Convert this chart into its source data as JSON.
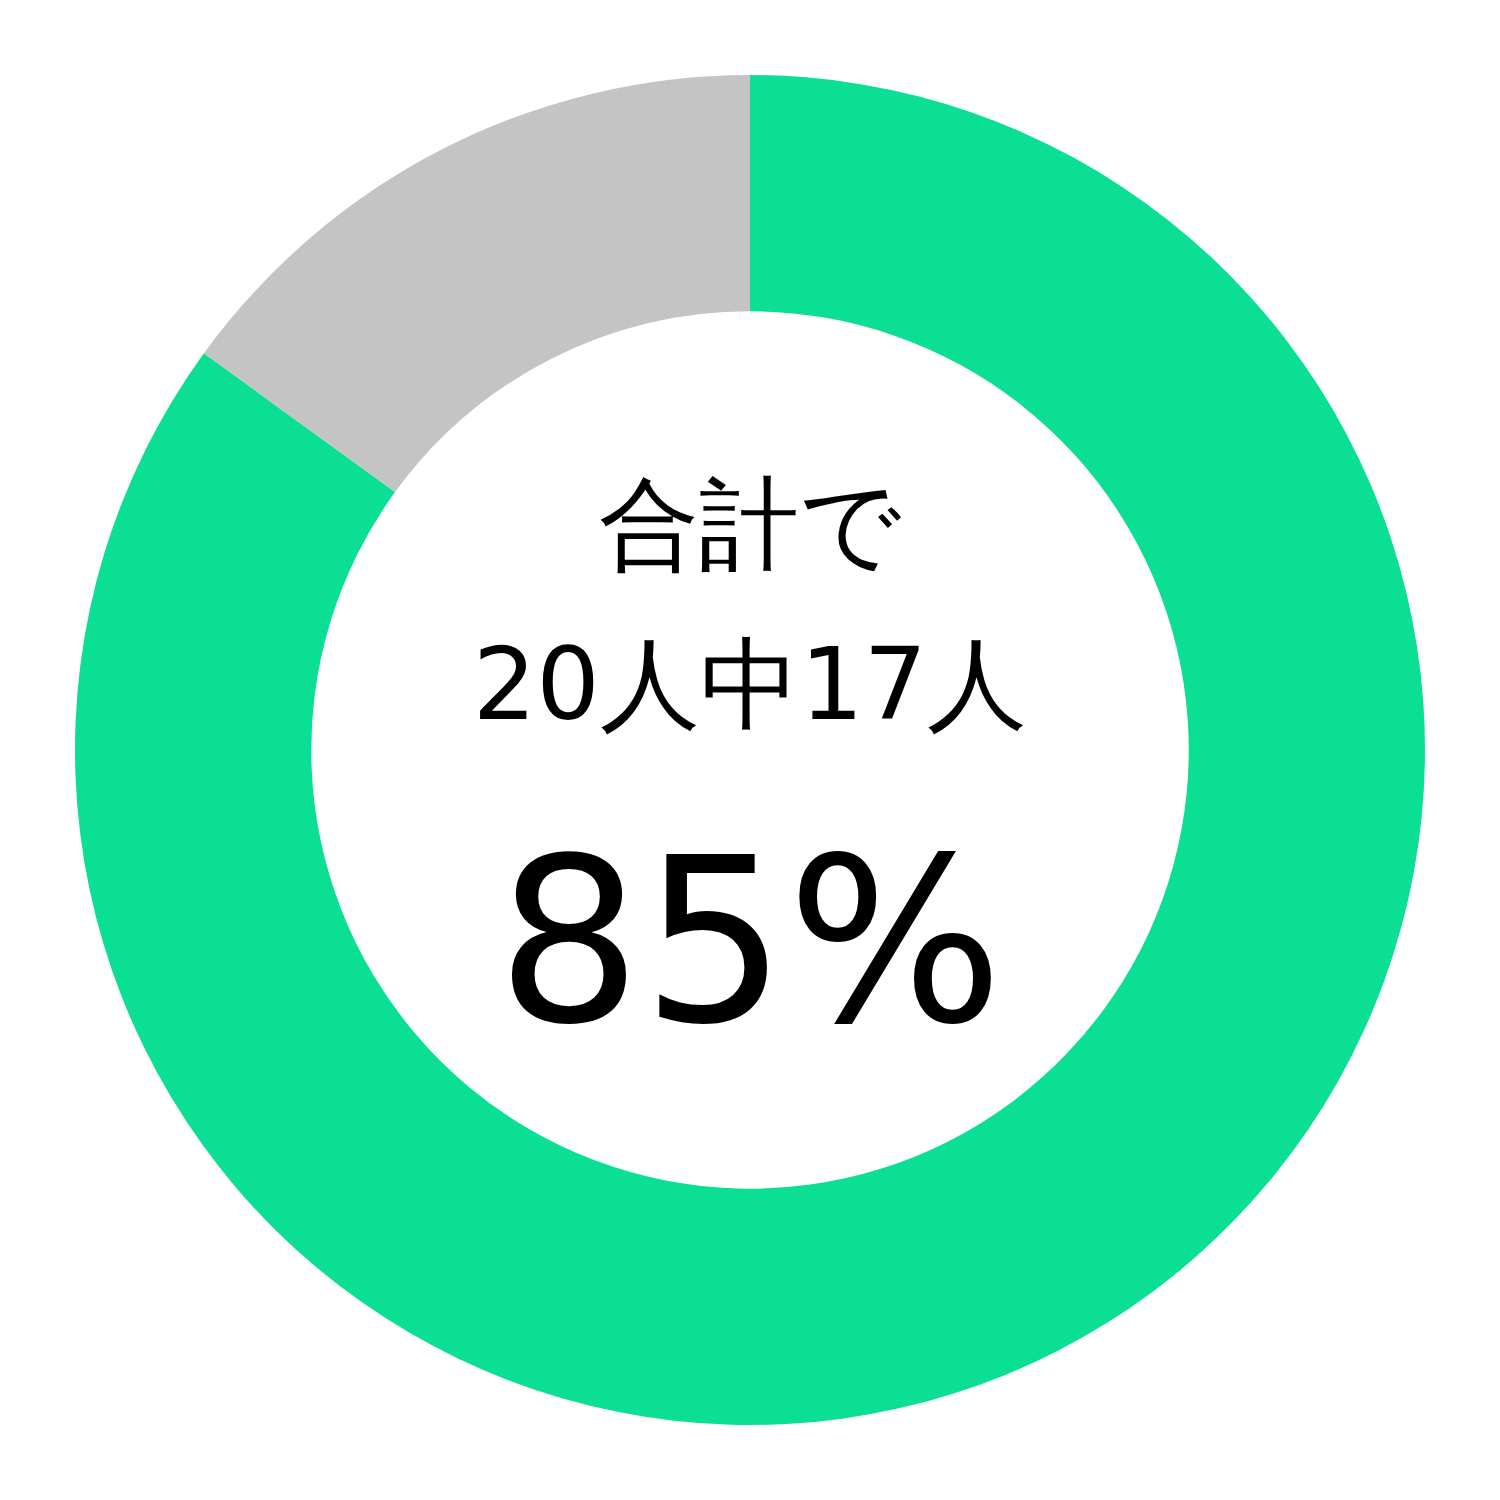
{
  "chart_data": {
    "type": "donut",
    "categories": [
      null,
      null
    ],
    "values": [
      85,
      15
    ],
    "colors": [
      "#0bdf94",
      "#c4c4c4"
    ],
    "annotations": [
      "合計で",
      "20人中17人",
      "85%"
    ],
    "legend": false
  }
}
